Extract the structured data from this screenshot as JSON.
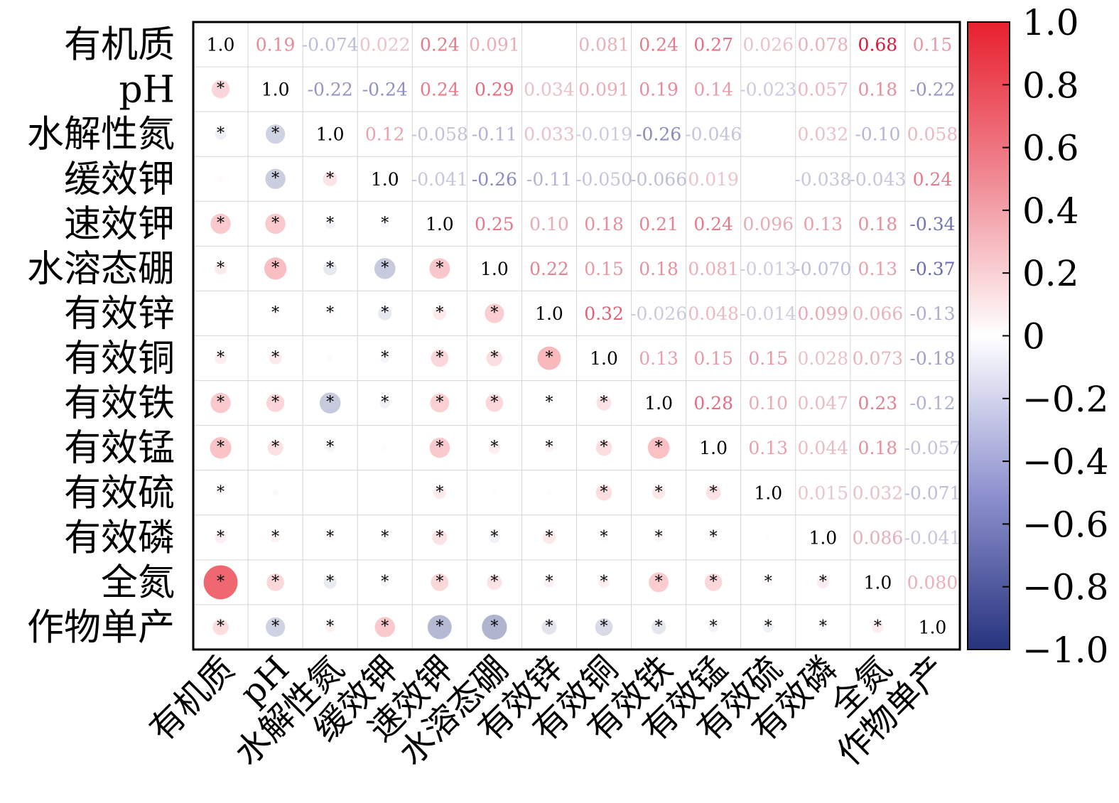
{
  "chart_data": {
    "type": "heatmap",
    "title": "",
    "variables": [
      "有机质",
      "pH",
      "水解性氮",
      "缓效钾",
      "速效钾",
      "水溶态硼",
      "有效锌",
      "有效铜",
      "有效铁",
      "有效锰",
      "有效硫",
      "有效磷",
      "全氮",
      "作物单产"
    ],
    "matrix": [
      [
        1.0,
        0.19,
        -0.074,
        0.022,
        0.24,
        0.091,
        0.003,
        0.081,
        0.24,
        0.27,
        0.026,
        0.078,
        0.68,
        0.15
      ],
      [
        0.19,
        1.0,
        -0.22,
        -0.24,
        0.24,
        0.29,
        0.034,
        0.091,
        0.19,
        0.14,
        -0.023,
        0.057,
        0.18,
        -0.22
      ],
      [
        -0.074,
        -0.22,
        1.0,
        0.12,
        -0.058,
        -0.11,
        0.033,
        -0.019,
        -0.26,
        -0.046,
        0.004,
        0.032,
        -0.1,
        0.058
      ],
      [
        0.022,
        -0.24,
        0.12,
        1.0,
        -0.041,
        -0.26,
        -0.11,
        -0.05,
        -0.066,
        0.019,
        0.006,
        -0.038,
        -0.043,
        0.24
      ],
      [
        0.24,
        0.24,
        -0.058,
        -0.041,
        1.0,
        0.25,
        0.1,
        0.18,
        0.21,
        0.24,
        0.096,
        0.13,
        0.18,
        -0.34
      ],
      [
        0.091,
        0.29,
        -0.11,
        -0.26,
        0.25,
        1.0,
        0.22,
        0.15,
        0.18,
        0.081,
        -0.013,
        -0.07,
        0.13,
        -0.37
      ],
      [
        0.003,
        0.034,
        0.033,
        -0.11,
        0.1,
        0.22,
        1.0,
        0.32,
        -0.026,
        0.048,
        -0.014,
        0.099,
        0.066,
        -0.13
      ],
      [
        0.081,
        0.091,
        -0.019,
        -0.05,
        0.18,
        0.15,
        0.32,
        1.0,
        0.13,
        0.15,
        0.15,
        0.028,
        0.073,
        -0.18
      ],
      [
        0.24,
        0.19,
        -0.26,
        -0.066,
        0.21,
        0.18,
        -0.026,
        0.13,
        1.0,
        0.28,
        0.1,
        0.047,
        0.23,
        -0.12
      ],
      [
        0.27,
        0.14,
        -0.046,
        0.019,
        0.24,
        0.081,
        0.048,
        0.15,
        0.28,
        1.0,
        0.13,
        0.044,
        0.18,
        -0.057
      ],
      [
        0.026,
        -0.023,
        0.004,
        0.006,
        0.096,
        -0.013,
        -0.014,
        0.15,
        0.1,
        0.13,
        1.0,
        0.015,
        0.032,
        -0.071
      ],
      [
        0.078,
        0.057,
        0.032,
        -0.038,
        0.13,
        -0.07,
        0.099,
        0.028,
        0.047,
        0.044,
        0.015,
        1.0,
        0.086,
        -0.041
      ],
      [
        0.68,
        0.18,
        -0.1,
        -0.043,
        0.18,
        0.13,
        0.066,
        0.073,
        0.23,
        0.18,
        0.032,
        0.086,
        1.0,
        0.08
      ],
      [
        0.15,
        -0.22,
        0.058,
        0.24,
        -0.34,
        -0.37,
        -0.13,
        -0.18,
        -0.12,
        -0.057,
        -0.071,
        -0.041,
        0.08,
        1.0
      ]
    ],
    "upper_labels": [
      [
        "1.0",
        "0.19",
        "-0.074",
        "0.022",
        "0.24",
        "0.091",
        "",
        "0.081",
        "0.24",
        "0.27",
        "0.026",
        "0.078",
        "0.68",
        "0.15"
      ],
      [
        "",
        "1.0",
        "-0.22",
        "-0.24",
        "0.24",
        "0.29",
        "0.034",
        "0.091",
        "0.19",
        "0.14",
        "-0.023",
        "0.057",
        "0.18",
        "-0.22"
      ],
      [
        "",
        "",
        "1.0",
        "0.12",
        "-0.058",
        "-0.11",
        "0.033",
        "-0.019",
        "-0.26",
        "-0.046",
        "",
        "0.032",
        "-0.10",
        "0.058"
      ],
      [
        "",
        "",
        "",
        "1.0",
        "-0.041",
        "-0.26",
        "-0.11",
        "-0.050",
        "-0.066",
        "0.019",
        "",
        "-0.038",
        "-0.043",
        "0.24"
      ],
      [
        "",
        "",
        "",
        "",
        "1.0",
        "0.25",
        "0.10",
        "0.18",
        "0.21",
        "0.24",
        "0.096",
        "0.13",
        "0.18",
        "-0.34"
      ],
      [
        "",
        "",
        "",
        "",
        "",
        "1.0",
        "0.22",
        "0.15",
        "0.18",
        "0.081",
        "-0.013",
        "-0.070",
        "0.13",
        "-0.37"
      ],
      [
        "",
        "",
        "",
        "",
        "",
        "",
        "1.0",
        "0.32",
        "-0.026",
        "0.048",
        "-0.014",
        "0.099",
        "0.066",
        "-0.13"
      ],
      [
        "",
        "",
        "",
        "",
        "",
        "",
        "",
        "1.0",
        "0.13",
        "0.15",
        "0.15",
        "0.028",
        "0.073",
        "-0.18"
      ],
      [
        "",
        "",
        "",
        "",
        "",
        "",
        "",
        "",
        "1.0",
        "0.28",
        "0.10",
        "0.047",
        "0.23",
        "-0.12"
      ],
      [
        "",
        "",
        "",
        "",
        "",
        "",
        "",
        "",
        "",
        "1.0",
        "0.13",
        "0.044",
        "0.18",
        "-0.057"
      ],
      [
        "",
        "",
        "",
        "",
        "",
        "",
        "",
        "",
        "",
        "",
        "1.0",
        "0.015",
        "0.032",
        "-0.071"
      ],
      [
        "",
        "",
        "",
        "",
        "",
        "",
        "",
        "",
        "",
        "",
        "",
        "1.0",
        "0.086",
        "-0.041"
      ],
      [
        "",
        "",
        "",
        "",
        "",
        "",
        "",
        "",
        "",
        "",
        "",
        "",
        "1.0",
        "0.080"
      ],
      [
        "",
        "",
        "",
        "",
        "",
        "",
        "",
        "",
        "",
        "",
        "",
        "",
        "",
        "1.0"
      ]
    ],
    "significance_lower": [
      [
        0,
        0,
        0,
        0,
        0,
        0,
        0,
        0,
        0,
        0,
        0,
        0,
        0,
        0
      ],
      [
        1,
        0,
        0,
        0,
        0,
        0,
        0,
        0,
        0,
        0,
        0,
        0,
        0,
        0
      ],
      [
        1,
        1,
        0,
        0,
        0,
        0,
        0,
        0,
        0,
        0,
        0,
        0,
        0,
        0
      ],
      [
        0,
        1,
        1,
        0,
        0,
        0,
        0,
        0,
        0,
        0,
        0,
        0,
        0,
        0
      ],
      [
        1,
        1,
        1,
        1,
        0,
        0,
        0,
        0,
        0,
        0,
        0,
        0,
        0,
        0
      ],
      [
        1,
        1,
        1,
        1,
        1,
        0,
        0,
        0,
        0,
        0,
        0,
        0,
        0,
        0
      ],
      [
        0,
        1,
        1,
        1,
        1,
        1,
        0,
        0,
        0,
        0,
        0,
        0,
        0,
        0
      ],
      [
        1,
        1,
        0,
        1,
        1,
        1,
        1,
        0,
        0,
        0,
        0,
        0,
        0,
        0
      ],
      [
        1,
        1,
        1,
        1,
        1,
        1,
        1,
        1,
        0,
        0,
        0,
        0,
        0,
        0
      ],
      [
        1,
        1,
        1,
        0,
        1,
        1,
        1,
        1,
        1,
        0,
        0,
        0,
        0,
        0
      ],
      [
        1,
        0,
        0,
        0,
        1,
        0,
        0,
        1,
        1,
        1,
        0,
        0,
        0,
        0
      ],
      [
        1,
        1,
        1,
        1,
        1,
        1,
        1,
        1,
        1,
        1,
        0,
        0,
        0,
        0
      ],
      [
        1,
        1,
        1,
        1,
        1,
        1,
        1,
        1,
        1,
        1,
        1,
        1,
        0,
        0
      ],
      [
        1,
        1,
        1,
        1,
        1,
        1,
        1,
        1,
        1,
        1,
        1,
        1,
        1,
        0
      ]
    ],
    "significance_mark": "*",
    "diagonal_label": "1.0",
    "colorbar": {
      "range": [
        -1.0,
        1.0
      ],
      "ticks": [
        1.0,
        0.8,
        0.6,
        0.4,
        0.2,
        0,
        -0.2,
        -0.4,
        -0.6,
        -0.8,
        -1.0
      ],
      "tick_labels": [
        "1.0",
        "0.8",
        "0.6",
        "0.4",
        "0.2",
        "0",
        "−0.2",
        "−0.4",
        "−0.6",
        "−0.8",
        "−1.0"
      ],
      "colors": {
        "positive": "#e8202e",
        "neutral": "#ffffff",
        "negative": "#26337d"
      }
    },
    "grid": true,
    "lower_triangle": "circles sized and colored by correlation",
    "upper_triangle": "numeric correlation values colored by sign and strength"
  }
}
